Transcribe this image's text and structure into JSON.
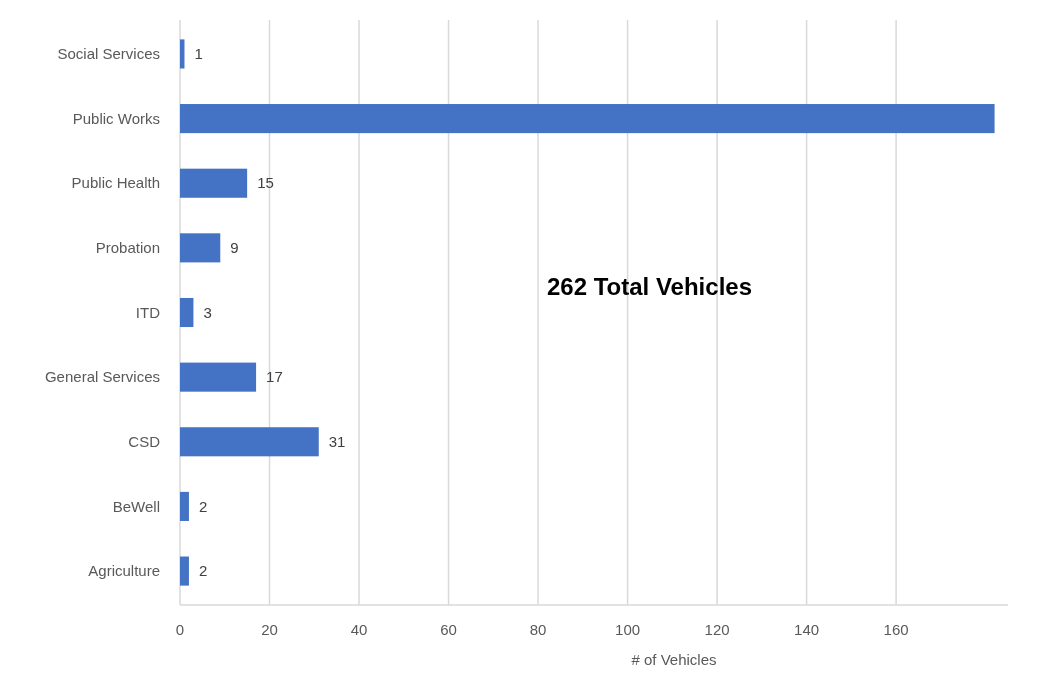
{
  "chart_data": {
    "type": "bar",
    "orientation": "horizontal",
    "categories": [
      "Social Services",
      "Public Works",
      "Public Health",
      "Probation",
      "ITD",
      "General Services",
      "CSD",
      "BeWell",
      "Agriculture"
    ],
    "values": [
      1,
      182,
      15,
      9,
      3,
      17,
      31,
      2,
      2
    ],
    "value_labels": [
      "1",
      null,
      "15",
      "9",
      "3",
      "17",
      "31",
      "2",
      "2"
    ],
    "color": "#4472c4",
    "xlim": [
      0,
      185
    ],
    "xticks": [
      0,
      20,
      40,
      60,
      80,
      100,
      120,
      140,
      160
    ],
    "xlabel": "# of Vehicles",
    "grid": "x",
    "annotations": [
      "262 Total Vehicles"
    ]
  }
}
